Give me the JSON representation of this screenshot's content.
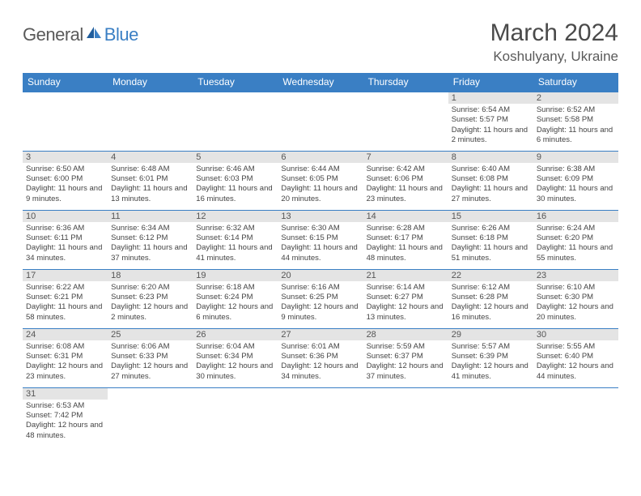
{
  "logo": {
    "part1": "General",
    "part2": "Blue"
  },
  "title": "March 2024",
  "location": "Koshulyany, Ukraine",
  "colors": {
    "header_bg": "#3a7fc4",
    "header_text": "#ffffff",
    "daynum_bg": "#e4e4e4",
    "row_border": "#3a7fc4",
    "logo_gray": "#5a5a5a",
    "logo_blue": "#3a7fc4",
    "body_text": "#444444"
  },
  "weekdays": [
    "Sunday",
    "Monday",
    "Tuesday",
    "Wednesday",
    "Thursday",
    "Friday",
    "Saturday"
  ],
  "weeks": [
    [
      null,
      null,
      null,
      null,
      null,
      {
        "n": "1",
        "sr": "6:54 AM",
        "ss": "5:57 PM",
        "dl": "11 hours and 2 minutes."
      },
      {
        "n": "2",
        "sr": "6:52 AM",
        "ss": "5:58 PM",
        "dl": "11 hours and 6 minutes."
      }
    ],
    [
      {
        "n": "3",
        "sr": "6:50 AM",
        "ss": "6:00 PM",
        "dl": "11 hours and 9 minutes."
      },
      {
        "n": "4",
        "sr": "6:48 AM",
        "ss": "6:01 PM",
        "dl": "11 hours and 13 minutes."
      },
      {
        "n": "5",
        "sr": "6:46 AM",
        "ss": "6:03 PM",
        "dl": "11 hours and 16 minutes."
      },
      {
        "n": "6",
        "sr": "6:44 AM",
        "ss": "6:05 PM",
        "dl": "11 hours and 20 minutes."
      },
      {
        "n": "7",
        "sr": "6:42 AM",
        "ss": "6:06 PM",
        "dl": "11 hours and 23 minutes."
      },
      {
        "n": "8",
        "sr": "6:40 AM",
        "ss": "6:08 PM",
        "dl": "11 hours and 27 minutes."
      },
      {
        "n": "9",
        "sr": "6:38 AM",
        "ss": "6:09 PM",
        "dl": "11 hours and 30 minutes."
      }
    ],
    [
      {
        "n": "10",
        "sr": "6:36 AM",
        "ss": "6:11 PM",
        "dl": "11 hours and 34 minutes."
      },
      {
        "n": "11",
        "sr": "6:34 AM",
        "ss": "6:12 PM",
        "dl": "11 hours and 37 minutes."
      },
      {
        "n": "12",
        "sr": "6:32 AM",
        "ss": "6:14 PM",
        "dl": "11 hours and 41 minutes."
      },
      {
        "n": "13",
        "sr": "6:30 AM",
        "ss": "6:15 PM",
        "dl": "11 hours and 44 minutes."
      },
      {
        "n": "14",
        "sr": "6:28 AM",
        "ss": "6:17 PM",
        "dl": "11 hours and 48 minutes."
      },
      {
        "n": "15",
        "sr": "6:26 AM",
        "ss": "6:18 PM",
        "dl": "11 hours and 51 minutes."
      },
      {
        "n": "16",
        "sr": "6:24 AM",
        "ss": "6:20 PM",
        "dl": "11 hours and 55 minutes."
      }
    ],
    [
      {
        "n": "17",
        "sr": "6:22 AM",
        "ss": "6:21 PM",
        "dl": "11 hours and 58 minutes."
      },
      {
        "n": "18",
        "sr": "6:20 AM",
        "ss": "6:23 PM",
        "dl": "12 hours and 2 minutes."
      },
      {
        "n": "19",
        "sr": "6:18 AM",
        "ss": "6:24 PM",
        "dl": "12 hours and 6 minutes."
      },
      {
        "n": "20",
        "sr": "6:16 AM",
        "ss": "6:25 PM",
        "dl": "12 hours and 9 minutes."
      },
      {
        "n": "21",
        "sr": "6:14 AM",
        "ss": "6:27 PM",
        "dl": "12 hours and 13 minutes."
      },
      {
        "n": "22",
        "sr": "6:12 AM",
        "ss": "6:28 PM",
        "dl": "12 hours and 16 minutes."
      },
      {
        "n": "23",
        "sr": "6:10 AM",
        "ss": "6:30 PM",
        "dl": "12 hours and 20 minutes."
      }
    ],
    [
      {
        "n": "24",
        "sr": "6:08 AM",
        "ss": "6:31 PM",
        "dl": "12 hours and 23 minutes."
      },
      {
        "n": "25",
        "sr": "6:06 AM",
        "ss": "6:33 PM",
        "dl": "12 hours and 27 minutes."
      },
      {
        "n": "26",
        "sr": "6:04 AM",
        "ss": "6:34 PM",
        "dl": "12 hours and 30 minutes."
      },
      {
        "n": "27",
        "sr": "6:01 AM",
        "ss": "6:36 PM",
        "dl": "12 hours and 34 minutes."
      },
      {
        "n": "28",
        "sr": "5:59 AM",
        "ss": "6:37 PM",
        "dl": "12 hours and 37 minutes."
      },
      {
        "n": "29",
        "sr": "5:57 AM",
        "ss": "6:39 PM",
        "dl": "12 hours and 41 minutes."
      },
      {
        "n": "30",
        "sr": "5:55 AM",
        "ss": "6:40 PM",
        "dl": "12 hours and 44 minutes."
      }
    ],
    [
      {
        "n": "31",
        "sr": "6:53 AM",
        "ss": "7:42 PM",
        "dl": "12 hours and 48 minutes."
      },
      null,
      null,
      null,
      null,
      null,
      null
    ]
  ],
  "labels": {
    "sunrise": "Sunrise:",
    "sunset": "Sunset:",
    "daylight": "Daylight:"
  }
}
